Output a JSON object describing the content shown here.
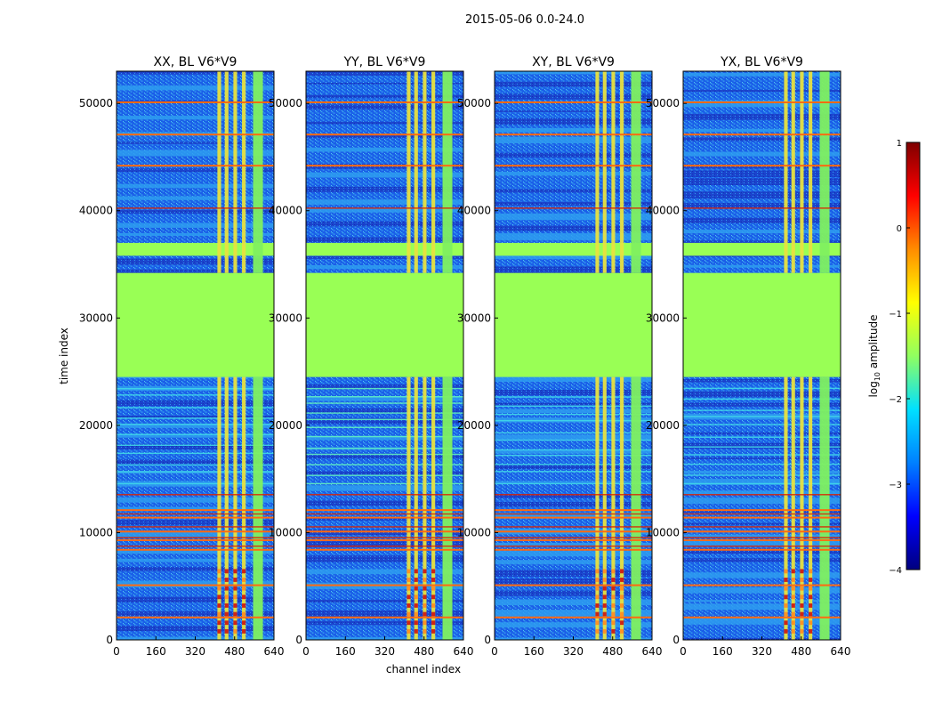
{
  "figure_title": "2015-05-06 0.0-24.0",
  "colors": {
    "ok_level": "#99ff55",
    "rfi_band": "#e8e040",
    "bad_line": "#ff6a10",
    "bad_line_strong": "#dd2200",
    "noise_low": "#1a5ee8",
    "noise_mid": "#2e9cf0",
    "noise_dark": "#1a3cc8",
    "burst": "#cc1010"
  },
  "chart_data": [
    {
      "type": "heatmap",
      "panel": "XX",
      "title": "XX, BL V6*V9",
      "xlabel": "channel index",
      "ylabel": "time index",
      "xlim": [
        0,
        640
      ],
      "ylim": [
        0,
        53000
      ],
      "xticks": [
        "0",
        "160",
        "320",
        "480",
        "640"
      ],
      "yticks": [
        "0",
        "10000",
        "20000",
        "30000",
        "40000",
        "50000"
      ]
    },
    {
      "type": "heatmap",
      "panel": "YY",
      "title": "YY, BL V6*V9",
      "xlabel": "channel index",
      "ylabel": "",
      "xlim": [
        0,
        640
      ],
      "ylim": [
        0,
        53000
      ],
      "xticks": [
        "0",
        "160",
        "320",
        "480",
        "640"
      ],
      "yticks": [
        "0",
        "10000",
        "20000",
        "30000",
        "40000",
        "50000"
      ]
    },
    {
      "type": "heatmap",
      "panel": "XY",
      "title": "XY, BL V6*V9",
      "xlabel": "channel index",
      "ylabel": "",
      "xlim": [
        0,
        640
      ],
      "ylim": [
        0,
        53000
      ],
      "xticks": [
        "0",
        "160",
        "320",
        "480",
        "640"
      ],
      "yticks": [
        "0",
        "10000",
        "20000",
        "30000",
        "40000",
        "50000"
      ]
    },
    {
      "type": "heatmap",
      "panel": "YX",
      "title": "YX, BL V6*V9",
      "xlabel": "channel index",
      "ylabel": "",
      "xlim": [
        0,
        640
      ],
      "ylim": [
        0,
        53000
      ],
      "xticks": [
        "0",
        "160",
        "320",
        "480",
        "640"
      ],
      "yticks": [
        "0",
        "10000",
        "20000",
        "30000",
        "40000",
        "50000"
      ]
    }
  ],
  "shared": {
    "xlabel": "channel index",
    "ylabel": "time index",
    "flagged_time_range": [
      24500,
      34200
    ],
    "rfi_channel_columns": [
      [
        410,
        425
      ],
      [
        440,
        455
      ],
      [
        475,
        490
      ],
      [
        510,
        525
      ],
      [
        555,
        595
      ]
    ],
    "strong_rfi_times": [
      2000,
      5000,
      8300,
      9200,
      10000,
      11300,
      12000,
      44100,
      47000,
      50000
    ]
  },
  "colorbar": {
    "label": "log",
    "label_sub": "10",
    "label_rest": " amplitude",
    "range": [
      -4,
      1
    ],
    "ticks": [
      "1",
      "0",
      "−1",
      "−2",
      "−3",
      "−4"
    ],
    "stops": [
      "#7f0000",
      "#ff0000",
      "#ff8c00",
      "#ffff00",
      "#90ff60",
      "#00e0ff",
      "#0080ff",
      "#0000ff",
      "#00007f"
    ]
  }
}
